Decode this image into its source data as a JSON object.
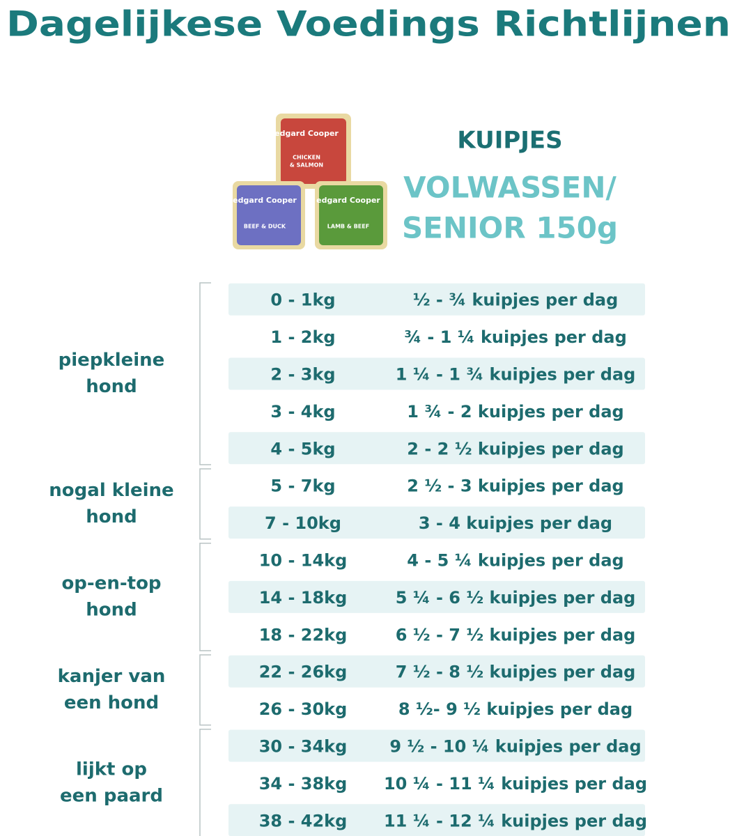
{
  "header": {
    "title": "Dagelijkese Voedings Richtlijnen"
  },
  "product": {
    "type": "KUIPJES",
    "variant": [
      "VOLWASSEN/",
      "SENIOR 150g"
    ],
    "tubs": [
      {
        "brand": "edgard Cooper",
        "name": [
          "CHICKEN",
          "& SALMON"
        ]
      },
      {
        "brand": "edgard Cooper",
        "name": [
          "BEEF & DUCK"
        ]
      },
      {
        "brand": "edgard Cooper",
        "name": [
          "LAMB & BEEF"
        ]
      }
    ]
  },
  "groups": [
    {
      "label": [
        "piepkleine",
        "hond"
      ],
      "rows": [
        [
          "0 - 1kg",
          "½ - ¾ kuipjes per dag"
        ],
        [
          "1 - 2kg",
          "¾ - 1 ¼ kuipjes per dag"
        ],
        [
          "2 - 3kg",
          "1 ¼ - 1 ¾ kuipjes per dag"
        ],
        [
          "3 - 4kg",
          "1 ¾ - 2 kuipjes per dag"
        ],
        [
          "4 - 5kg",
          "2 - 2 ½ kuipjes per dag"
        ]
      ]
    },
    {
      "label": [
        "nogal kleine",
        "hond"
      ],
      "rows": [
        [
          "5 - 7kg",
          "2 ½ - 3 kuipjes per dag"
        ],
        [
          "7 - 10kg",
          "3 - 4 kuipjes per dag"
        ]
      ]
    },
    {
      "label": [
        "op-en-top",
        "hond"
      ],
      "rows": [
        [
          "10 - 14kg",
          "4 - 5 ¼ kuipjes per dag"
        ],
        [
          "14 - 18kg",
          "5 ¼ - 6 ½ kuipjes per dag"
        ],
        [
          "18 - 22kg",
          "6 ½ - 7 ½ kuipjes per dag"
        ]
      ]
    },
    {
      "label": [
        "kanjer van",
        "een hond"
      ],
      "rows": [
        [
          "22 - 26kg",
          "7 ½ - 8 ½ kuipjes per dag"
        ],
        [
          "26 - 30kg",
          "8 ½- 9 ½ kuipjes per dag"
        ]
      ]
    },
    {
      "label": [
        "lijkt op",
        "een paard"
      ],
      "rows": [
        [
          "30 - 34kg",
          "9 ½ - 10 ¼ kuipjes per dag"
        ],
        [
          "34 - 38kg",
          "10 ¼ - 11 ¼ kuipjes per dag"
        ],
        [
          "38 - 42kg",
          "11 ¼ - 12 ¼ kuipjes per dag"
        ]
      ]
    }
  ]
}
